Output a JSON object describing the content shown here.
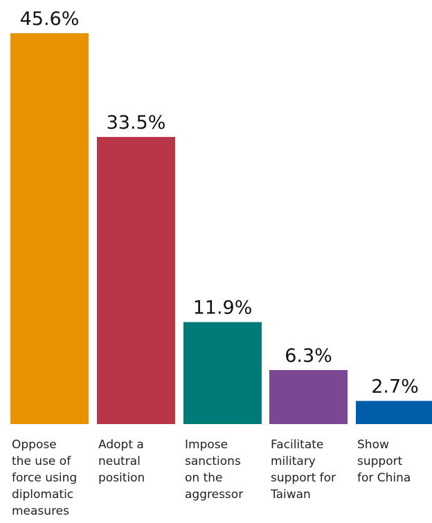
{
  "chart_data": {
    "type": "bar",
    "title": "",
    "xlabel": "",
    "ylabel": "",
    "ylim": [
      0,
      45.6
    ],
    "grid": false,
    "categories": [
      "Oppose the use of force using diplomatic measures",
      "Adopt a neutral position",
      "Impose sanctions on the aggressor",
      "Facilitate military support for Taiwan",
      "Show support for China"
    ],
    "category_label_lines": [
      [
        "Oppose",
        "the use of",
        "force using",
        "diplomatic",
        "measures"
      ],
      [
        "Adopt a",
        "neutral",
        "position"
      ],
      [
        "Impose",
        "sanctions",
        "on the",
        "aggressor"
      ],
      [
        "Facilitate",
        "military",
        "support for",
        "Taiwan"
      ],
      [
        "Show",
        "support",
        "for China"
      ]
    ],
    "values": [
      45.6,
      33.5,
      11.9,
      6.3,
      2.7
    ],
    "value_labels": [
      "45.6%",
      "33.5%",
      "11.9%",
      "6.3%",
      "2.7%"
    ],
    "colors": [
      "#E89200",
      "#B83645",
      "#007A78",
      "#7B4795",
      "#005DAA"
    ]
  }
}
